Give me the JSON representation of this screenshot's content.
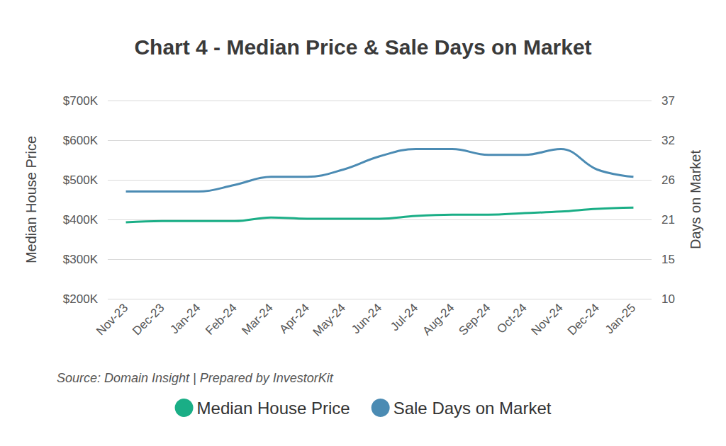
{
  "chart_data": {
    "type": "line",
    "title": "Chart 4 - Median Price & Sale Days on Market",
    "y_label": "Median House Price",
    "y2_label": "Days on Market",
    "source": "Source: Domain Insight | Prepared by InvestorKit",
    "categories": [
      "Nov-23",
      "Dec-23",
      "Jan-24",
      "Feb-24",
      "Mar-24",
      "Apr-24",
      "May-24",
      "Jun-24",
      "Jul-24",
      "Aug-24",
      "Sep-24",
      "Oct-24",
      "Nov-24",
      "Dec-24",
      "Jan-25"
    ],
    "series": [
      {
        "name": "Median House Price",
        "color": "#1aae86",
        "values": [
          393000,
          396000,
          396000,
          396000,
          405000,
          402000,
          402000,
          402000,
          409000,
          412000,
          412000,
          416000,
          420000,
          427000,
          430000
        ]
      },
      {
        "name": "Sale Days on Market",
        "color": "#4b8bb3",
        "axis": "y2",
        "values": [
          24.6,
          24.6,
          24.6,
          25.5,
          26.6,
          26.6,
          27.6,
          29.4,
          30.4,
          30.4,
          29.6,
          29.6,
          30.4,
          27.6,
          26.6
        ]
      }
    ],
    "ylim": [
      200000,
      700000
    ],
    "yticks": [
      {
        "value": 200000,
        "label": "$200K"
      },
      {
        "value": 300000,
        "label": "$300K"
      },
      {
        "value": 400000,
        "label": "$400K"
      },
      {
        "value": 500000,
        "label": "$500K"
      },
      {
        "value": 600000,
        "label": "$600K"
      },
      {
        "value": 700000,
        "label": "$700K"
      }
    ],
    "y2lim": [
      10,
      37
    ],
    "y2ticks": [
      10,
      {
        "value": 15.4,
        "label": "15"
      },
      {
        "value": 20.8,
        "label": "21"
      },
      {
        "value": 26.2,
        "label": "26"
      },
      {
        "value": 31.6,
        "label": "32"
      },
      37
    ],
    "grid": true,
    "legend": "bottom",
    "marker": "none",
    "line_style": "smooth"
  }
}
